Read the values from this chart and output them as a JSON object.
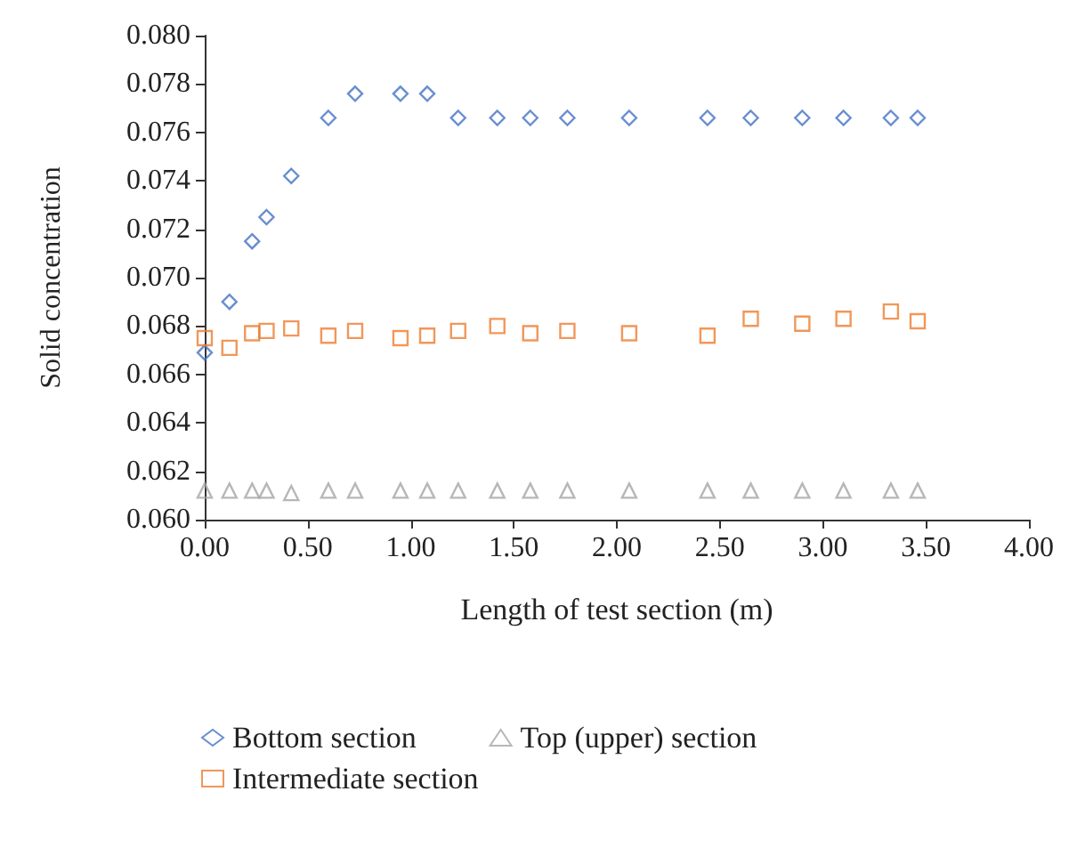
{
  "chart_data": {
    "type": "scatter",
    "xlabel": "Length of test section (m)",
    "ylabel": "Solid concentration",
    "x": [
      0,
      0.12,
      0.23,
      0.3,
      0.42,
      0.6,
      0.73,
      0.95,
      1.08,
      1.23,
      1.42,
      1.58,
      1.76,
      2.06,
      2.44,
      2.65,
      2.9,
      3.1,
      3.33,
      3.46
    ],
    "series": [
      {
        "name": "Bottom section",
        "color": "#4472c4",
        "marker": "diamond",
        "values": [
          0.0669,
          0.069,
          0.0715,
          0.0725,
          0.0742,
          0.0766,
          0.0776,
          0.0776,
          0.0776,
          0.0766,
          0.0766,
          0.0766,
          0.0766,
          0.0766,
          0.0766,
          0.0766,
          0.0766,
          0.0766,
          0.0766,
          0.0766
        ]
      },
      {
        "name": "Intermediate section",
        "color": "#ed7d31",
        "marker": "square",
        "values": [
          0.0675,
          0.0671,
          0.0677,
          0.0678,
          0.0679,
          0.0676,
          0.0678,
          0.0675,
          0.0676,
          0.0678,
          0.068,
          0.0677,
          0.0678,
          0.0677,
          0.0676,
          0.0683,
          0.0681,
          0.0683,
          0.0686,
          0.0682
        ]
      },
      {
        "name": "Top (upper) section",
        "color": "#a5a5a5",
        "marker": "triangle",
        "values": [
          0.0612,
          0.0612,
          0.0612,
          0.0612,
          0.0611,
          0.0612,
          0.0612,
          0.0612,
          0.0612,
          0.0612,
          0.0612,
          0.0612,
          0.0612,
          0.0612,
          0.0612,
          0.0612,
          0.0612,
          0.0612,
          0.0612,
          0.0612
        ]
      }
    ],
    "xlim": [
      0,
      4
    ],
    "xticks": [
      {
        "value": 0,
        "label": "0.00"
      },
      {
        "value": 0.5,
        "label": "0.50"
      },
      {
        "value": 1,
        "label": "1.00"
      },
      {
        "value": 1.5,
        "label": "1.50"
      },
      {
        "value": 2,
        "label": "2.00"
      },
      {
        "value": 2.5,
        "label": "2.50"
      },
      {
        "value": 3,
        "label": "3.00"
      },
      {
        "value": 3.5,
        "label": "3.50"
      },
      {
        "value": 4,
        "label": "4.00"
      }
    ],
    "ylim": [
      0.06,
      0.08
    ],
    "yticks": [
      {
        "value": 0.06,
        "label": "0.060"
      },
      {
        "value": 0.062,
        "label": "0.062"
      },
      {
        "value": 0.064,
        "label": "0.064"
      },
      {
        "value": 0.066,
        "label": "0.066"
      },
      {
        "value": 0.068,
        "label": "0.068"
      },
      {
        "value": 0.07,
        "label": "0.070"
      },
      {
        "value": 0.072,
        "label": "0.072"
      },
      {
        "value": 0.074,
        "label": "0.074"
      },
      {
        "value": 0.076,
        "label": "0.076"
      },
      {
        "value": 0.078,
        "label": "0.078"
      },
      {
        "value": 0.08,
        "label": "0.080"
      }
    ],
    "grid": false,
    "legend": "bottom left"
  }
}
